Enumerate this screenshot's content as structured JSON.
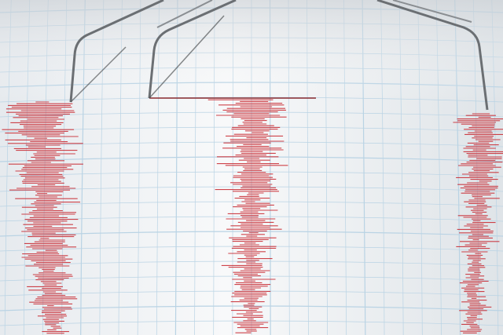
{
  "scene": {
    "subject": "seismograph",
    "colors": {
      "paper": "#f3f5f7",
      "grid": "#b9d3e4",
      "trace": "#c8242c",
      "needle": "#6b6f73"
    },
    "traces": [
      {
        "name": "trace-left"
      },
      {
        "name": "trace-center"
      },
      {
        "name": "trace-right"
      }
    ]
  }
}
